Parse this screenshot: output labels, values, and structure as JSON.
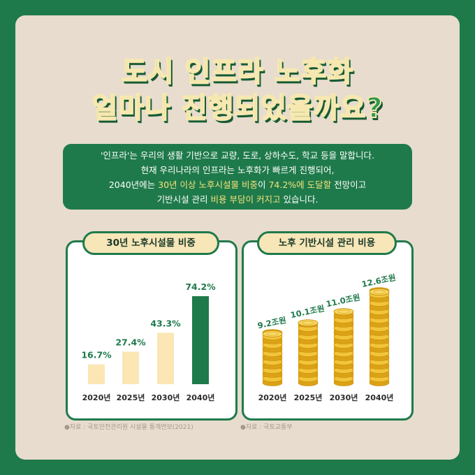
{
  "title": {
    "line1": "도시 인프라 노후화",
    "line2": "얼마나 진행되었을까요?"
  },
  "description": {
    "line1": "'인프라'는 우리의 생활 기반으로 교량, 도로, 상하수도, 학교 등을 말합니다.",
    "line2": "현재 우리나라의 인프라는 노후화가 빠르게 진행되어,",
    "line3_a": "2040년에는 ",
    "line3_b": "30년 이상 노후시설물 비중",
    "line3_c": "이 ",
    "line3_d": "74.2%에 도달할",
    "line3_e": " 전망이고",
    "line4_a": "기반시설 관리 ",
    "line4_b": "비용 부담이 커지고",
    "line4_c": " 있습니다."
  },
  "colors": {
    "green": "#1f7a4b",
    "cream_bar": "#fbe6b4",
    "coin": "#e8b21e"
  },
  "chart_data": [
    {
      "type": "bar",
      "title": "30년 노후시설물 비중",
      "categories": [
        "2020년",
        "2025년",
        "2030년",
        "2040년"
      ],
      "values": [
        16.7,
        27.4,
        43.3,
        74.2
      ],
      "value_labels": [
        "16.7%",
        "27.4%",
        "43.3%",
        "74.2%"
      ],
      "unit": "%",
      "highlight_index": 3,
      "source": "●자료 : 국토안전관리원 시설물 통계연보(2021)"
    },
    {
      "type": "bar",
      "title": "노후 기반시설 관리 비용",
      "categories": [
        "2020년",
        "2025년",
        "2030년",
        "2040년"
      ],
      "values": [
        9.2,
        10.1,
        11.0,
        12.6
      ],
      "value_labels": [
        "9.2조원",
        "10.1조원",
        "11.0조원",
        "12.6조원"
      ],
      "unit": "조원",
      "bar_style": "coin-stack",
      "source": "●자료 : 국토교통부"
    }
  ]
}
